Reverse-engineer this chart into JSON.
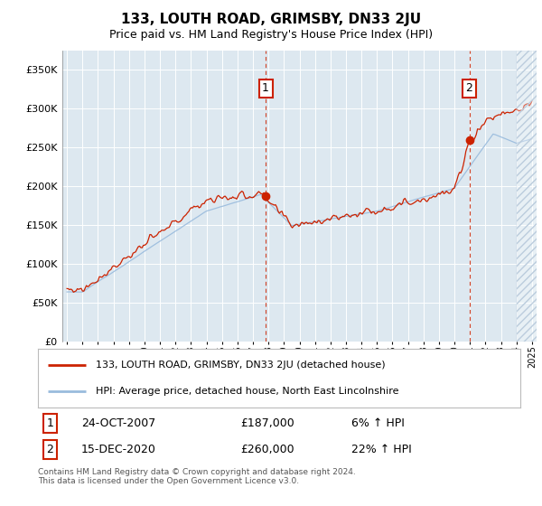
{
  "title": "133, LOUTH ROAD, GRIMSBY, DN33 2JU",
  "subtitle": "Price paid vs. HM Land Registry's House Price Index (HPI)",
  "yticks": [
    0,
    50000,
    100000,
    150000,
    200000,
    250000,
    300000,
    350000
  ],
  "ylim": [
    0,
    375000
  ],
  "xlim_left": 1994.7,
  "xlim_right": 2025.3,
  "hpi_color": "#99bbdd",
  "price_color": "#cc2200",
  "sale1_x": 2007.82,
  "sale1_y": 187000,
  "sale2_x": 2020.96,
  "sale2_y": 260000,
  "sale1_date": "24-OCT-2007",
  "sale1_price": "£187,000",
  "sale1_label": "6% ↑ HPI",
  "sale2_date": "15-DEC-2020",
  "sale2_price": "£260,000",
  "sale2_label": "22% ↑ HPI",
  "legend_line1": "133, LOUTH ROAD, GRIMSBY, DN33 2JU (detached house)",
  "legend_line2": "HPI: Average price, detached house, North East Lincolnshire",
  "footer": "Contains HM Land Registry data © Crown copyright and database right 2024.\nThis data is licensed under the Open Government Licence v3.0.",
  "plot_bg": "#dde8f0",
  "fig_bg": "#ffffff",
  "grid_color": "#ffffff",
  "hatch_start": 2024.0
}
